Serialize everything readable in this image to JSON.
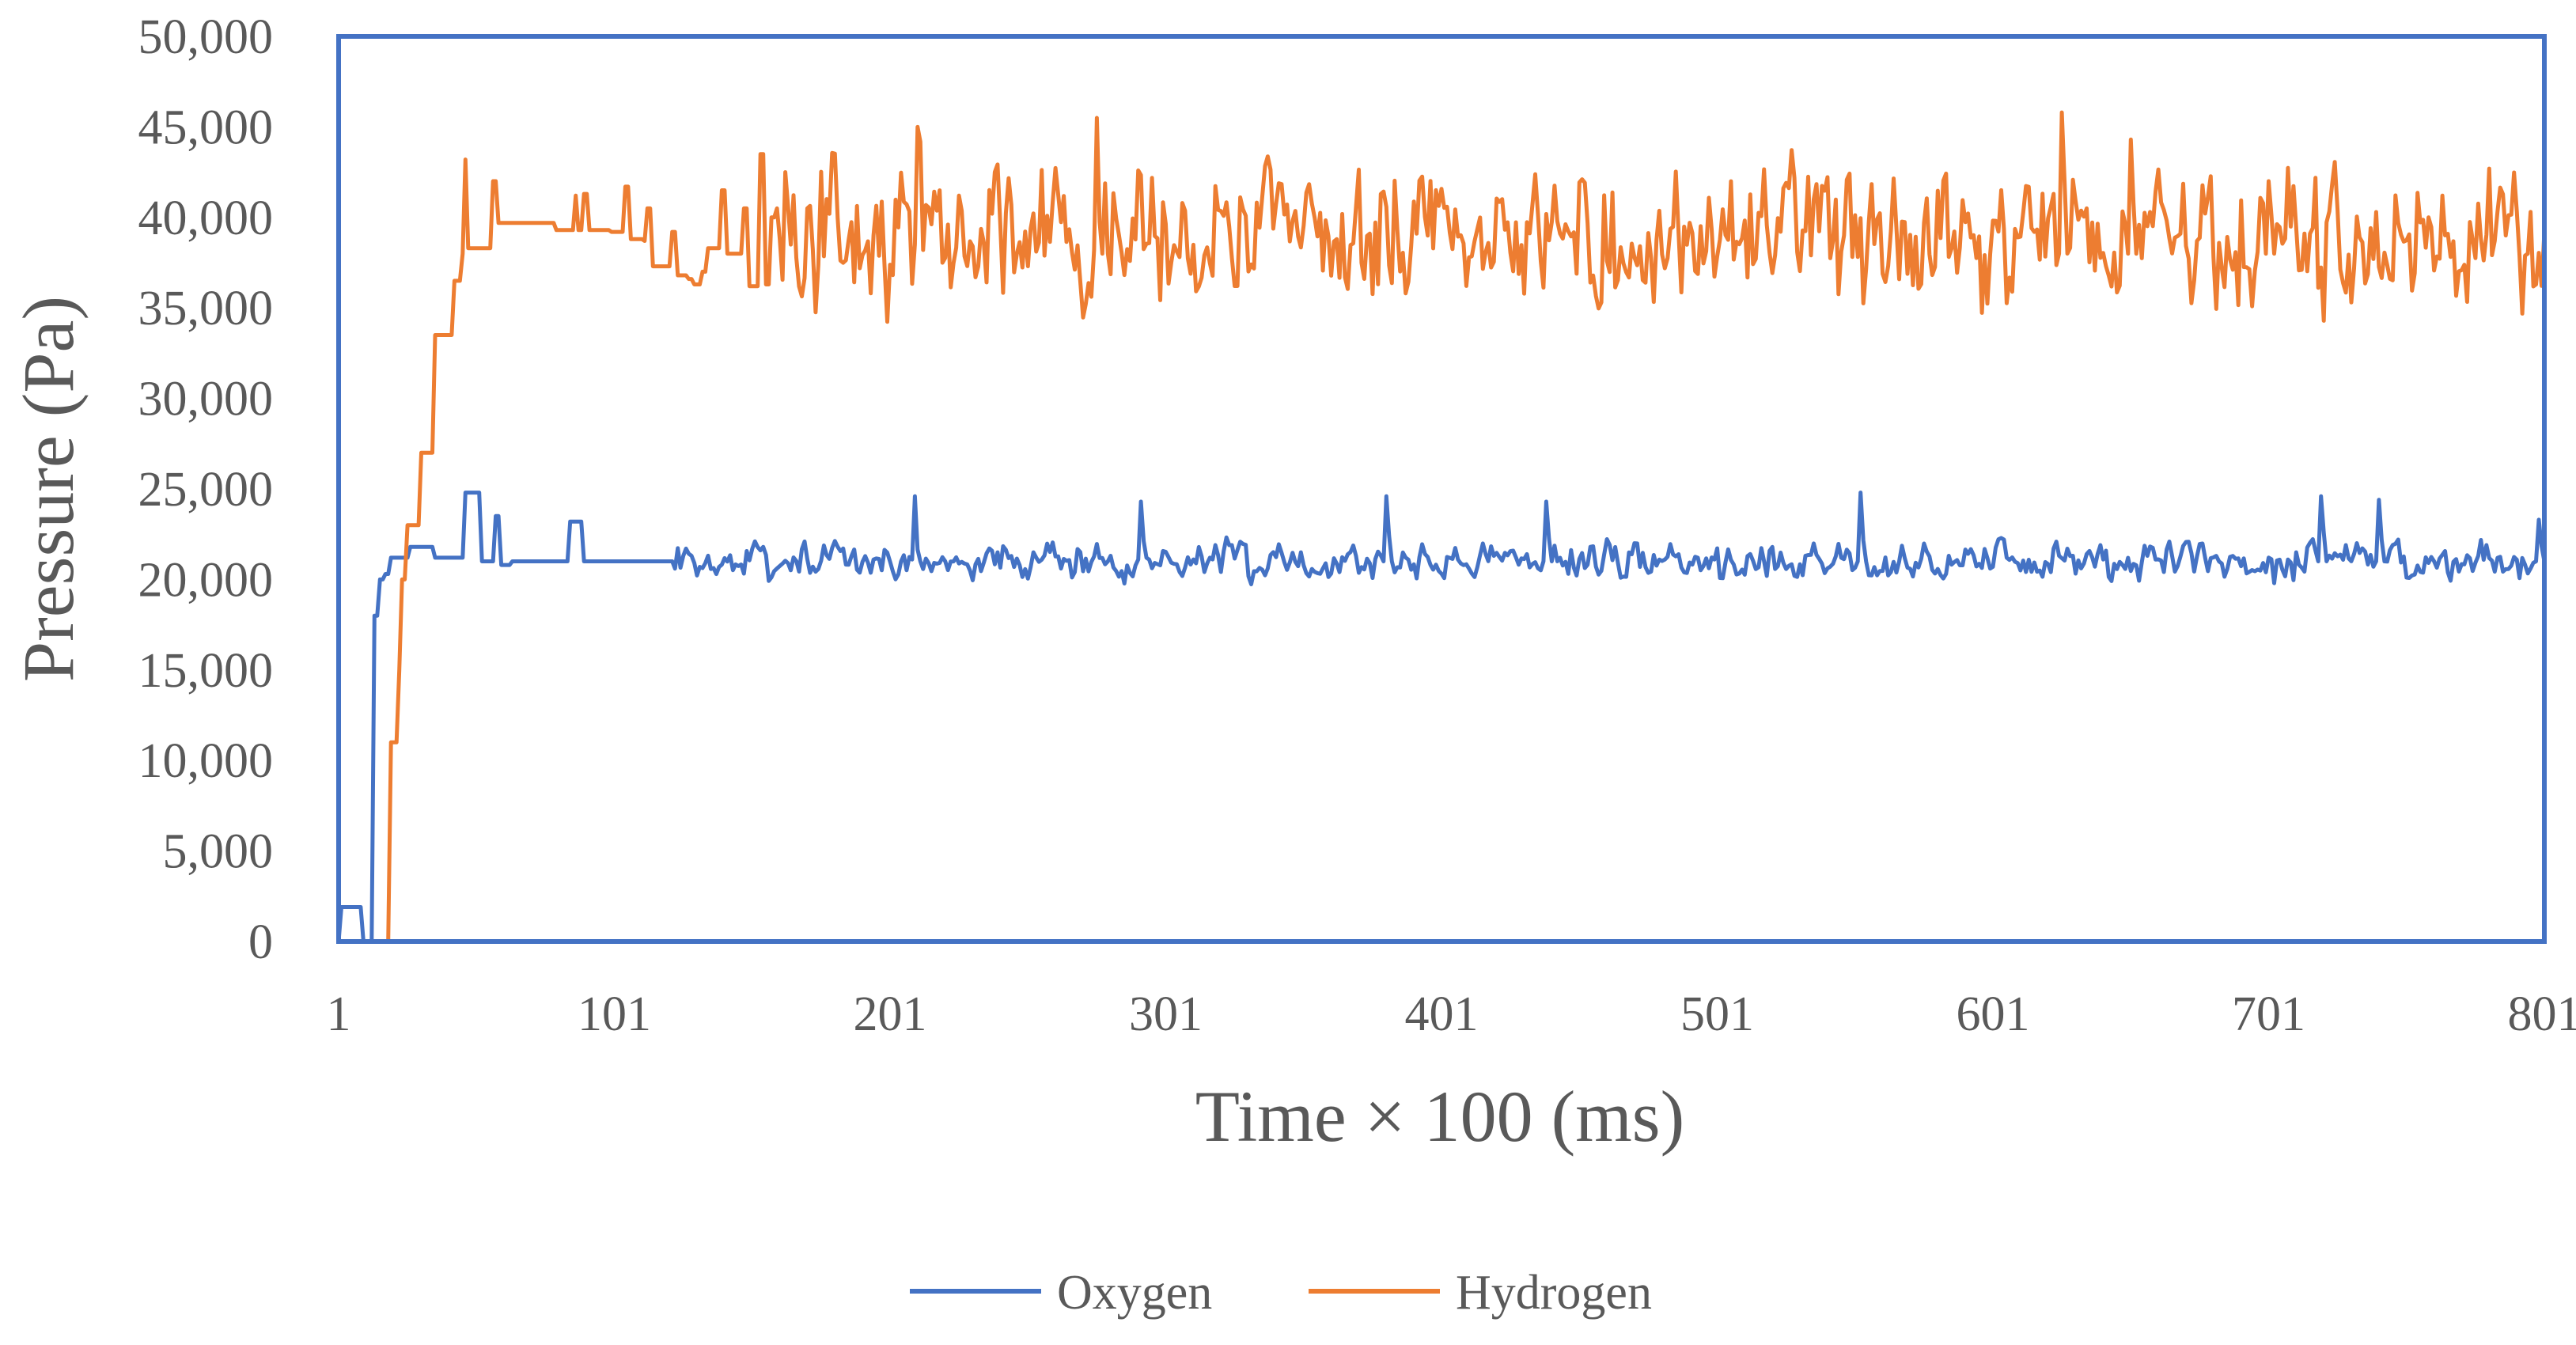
{
  "chart_data": {
    "type": "line",
    "title": "",
    "xlabel": "Time  × 100 (ms)",
    "ylabel": "Pressure  (Pa)",
    "xlim": [
      1,
      801
    ],
    "ylim": [
      0,
      50000
    ],
    "x_ticks": [
      1,
      101,
      201,
      301,
      401,
      501,
      601,
      701,
      801
    ],
    "x_tick_labels": [
      "1",
      "101",
      "201",
      "301",
      "401",
      "501",
      "601",
      "701",
      "801"
    ],
    "y_ticks": [
      0,
      5000,
      10000,
      15000,
      20000,
      25000,
      30000,
      35000,
      40000,
      45000,
      50000
    ],
    "y_tick_labels": [
      "0",
      "5,000",
      "10,000",
      "15,000",
      "20,000",
      "25,000",
      "30,000",
      "35,000",
      "40,000",
      "45,000",
      "50,000"
    ],
    "grid": false,
    "legend_position": "bottom",
    "frame_color": "#4472C4",
    "series": [
      {
        "name": "Oxygen",
        "color": "#4472C4",
        "baseline": 21000,
        "noise": 700,
        "seed": 7,
        "points": [
          [
            1,
            0
          ],
          [
            2,
            1900
          ],
          [
            5,
            1900
          ],
          [
            8,
            1900
          ],
          [
            10,
            0
          ],
          [
            13,
            0
          ],
          [
            14,
            18000
          ],
          [
            16,
            20000
          ],
          [
            18,
            20300
          ],
          [
            20,
            21200
          ],
          [
            26,
            21200
          ],
          [
            27,
            21800
          ],
          [
            34,
            21800
          ],
          [
            36,
            21200
          ],
          [
            40,
            21200
          ],
          [
            47,
            24800
          ],
          [
            50,
            24800
          ],
          [
            53,
            21000
          ],
          [
            55,
            21000
          ],
          [
            58,
            23500
          ],
          [
            60,
            20800
          ],
          [
            64,
            21000
          ],
          [
            80,
            21000
          ],
          [
            85,
            23200
          ],
          [
            88,
            23200
          ],
          [
            90,
            21000
          ],
          [
            120,
            21000
          ],
          [
            123,
            20600
          ],
          [
            209,
            21100
          ],
          [
            210,
            24600
          ],
          [
            212,
            21000
          ],
          [
            291,
            21100
          ],
          [
            292,
            24300
          ],
          [
            294,
            21200
          ],
          [
            380,
            21000
          ],
          [
            381,
            24600
          ],
          [
            383,
            21000
          ],
          [
            438,
            21000
          ],
          [
            439,
            24300
          ],
          [
            441,
            21000
          ],
          [
            552,
            21000
          ],
          [
            553,
            24800
          ],
          [
            555,
            21000
          ],
          [
            719,
            21000
          ],
          [
            720,
            24600
          ],
          [
            722,
            21000
          ],
          [
            740,
            21000
          ],
          [
            741,
            24400
          ],
          [
            743,
            21000
          ],
          [
            798,
            21000
          ],
          [
            799,
            23300
          ],
          [
            801,
            21000
          ]
        ]
      },
      {
        "name": "Hydrogen",
        "color": "#ED7D31",
        "baseline": 38800,
        "noise": 2600,
        "seed": 13,
        "points": [
          [
            1,
            0
          ],
          [
            15,
            0
          ],
          [
            19,
            0
          ],
          [
            20,
            11000
          ],
          [
            23,
            15000
          ],
          [
            24,
            20000
          ],
          [
            26,
            23000
          ],
          [
            30,
            23000
          ],
          [
            31,
            27000
          ],
          [
            35,
            27000
          ],
          [
            36,
            33500
          ],
          [
            40,
            33500
          ],
          [
            43,
            36500
          ],
          [
            46,
            38000
          ],
          [
            47,
            43200
          ],
          [
            48,
            38300
          ],
          [
            56,
            38300
          ],
          [
            57,
            42000
          ],
          [
            58,
            42000
          ],
          [
            59,
            39700
          ],
          [
            70,
            39700
          ],
          [
            80,
            39300
          ],
          [
            86,
            39300
          ],
          [
            87,
            41200
          ],
          [
            88,
            39300
          ],
          [
            90,
            41300
          ],
          [
            92,
            39300
          ],
          [
            97,
            39300
          ],
          [
            100,
            39200
          ],
          [
            103,
            39200
          ],
          [
            105,
            41700
          ],
          [
            107,
            38800
          ],
          [
            112,
            38700
          ],
          [
            113,
            40500
          ],
          [
            115,
            37300
          ],
          [
            120,
            37300
          ],
          [
            122,
            39200
          ],
          [
            124,
            36800
          ],
          [
            128,
            36600
          ],
          [
            130,
            36300
          ],
          [
            133,
            37000
          ],
          [
            135,
            38300
          ],
          [
            137,
            38300
          ],
          [
            140,
            41500
          ],
          [
            142,
            38000
          ],
          [
            146,
            38000
          ],
          [
            148,
            40500
          ],
          [
            150,
            36200
          ],
          [
            152,
            36200
          ],
          [
            154,
            43500
          ],
          [
            156,
            36300
          ],
          [
            158,
            40000
          ],
          [
            160,
            40500
          ],
          [
            163,
            42500
          ],
          [
            165,
            38500
          ],
          [
            210,
            38500
          ],
          [
            211,
            45000
          ],
          [
            213,
            38200
          ],
          [
            275,
            38200
          ],
          [
            276,
            45500
          ],
          [
            278,
            38000
          ],
          [
            625,
            38000
          ],
          [
            626,
            45800
          ],
          [
            628,
            38000
          ],
          [
            650,
            38000
          ],
          [
            651,
            44300
          ],
          [
            653,
            38000
          ],
          [
            700,
            38000
          ],
          [
            701,
            42000
          ],
          [
            703,
            38000
          ],
          [
            795,
            38000
          ],
          [
            796,
            40300
          ],
          [
            798,
            36300
          ],
          [
            801,
            39200
          ]
        ]
      }
    ]
  }
}
